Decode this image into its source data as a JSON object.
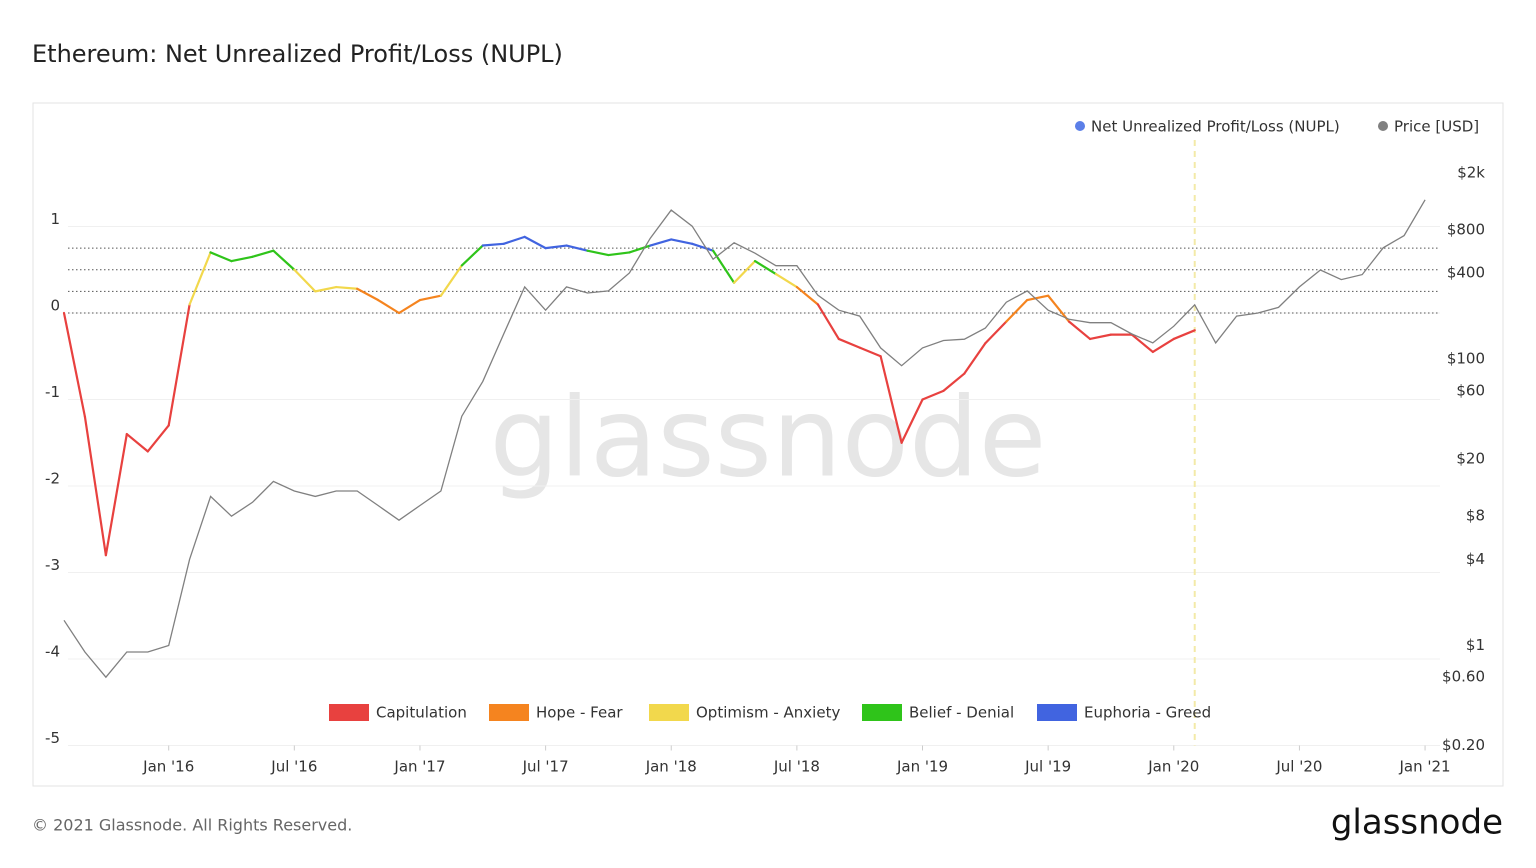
{
  "chart_data": {
    "type": "line",
    "title": "Ethereum: Net Unrealized Profit/Loss (NUPL)",
    "watermark": "glassnode",
    "footer": "© 2021 Glassnode. All Rights Reserved.",
    "logo": "glassnode",
    "x": [
      "2015-08",
      "2015-09",
      "2015-10",
      "2015-11",
      "2015-12",
      "2016-01",
      "2016-02",
      "2016-03",
      "2016-04",
      "2016-05",
      "2016-06",
      "2016-07",
      "2016-08",
      "2016-09",
      "2016-10",
      "2016-11",
      "2016-12",
      "2017-01",
      "2017-02",
      "2017-03",
      "2017-04",
      "2017-05",
      "2017-06",
      "2017-07",
      "2017-08",
      "2017-09",
      "2017-10",
      "2017-11",
      "2017-12",
      "2018-01",
      "2018-02",
      "2018-03",
      "2018-04",
      "2018-05",
      "2018-06",
      "2018-07",
      "2018-08",
      "2018-09",
      "2018-10",
      "2018-11",
      "2018-12",
      "2019-01",
      "2019-02",
      "2019-03",
      "2019-04",
      "2019-05",
      "2019-06",
      "2019-07",
      "2019-08",
      "2019-09",
      "2019-10",
      "2019-11",
      "2019-12",
      "2020-01",
      "2020-02",
      "2020-03",
      "2020-04",
      "2020-05",
      "2020-06",
      "2020-07",
      "2020-08",
      "2020-09",
      "2020-10",
      "2020-11",
      "2020-12",
      "2021-01"
    ],
    "xlim": [
      "2015-08",
      "2021-02"
    ],
    "xticks": [
      {
        "value": "2016-01",
        "label": "Jan '16"
      },
      {
        "value": "2016-07",
        "label": "Jul '16"
      },
      {
        "value": "2017-01",
        "label": "Jan '17"
      },
      {
        "value": "2017-07",
        "label": "Jul '17"
      },
      {
        "value": "2018-01",
        "label": "Jan '18"
      },
      {
        "value": "2018-07",
        "label": "Jul '18"
      },
      {
        "value": "2019-01",
        "label": "Jan '19"
      },
      {
        "value": "2019-07",
        "label": "Jul '19"
      },
      {
        "value": "2020-01",
        "label": "Jan '20"
      },
      {
        "value": "2020-07",
        "label": "Jul '20"
      },
      {
        "value": "2021-01",
        "label": "Jan '21"
      }
    ],
    "ylim": [
      -5,
      2
    ],
    "yticks": [
      -5,
      -4,
      -3,
      -2,
      -1,
      0,
      1
    ],
    "y2lim": [
      0.2,
      3400
    ],
    "y2_log_scale": true,
    "y2ticks": [
      {
        "value": 0.2,
        "label": "$0.20"
      },
      {
        "value": 0.6,
        "label": "$0.60"
      },
      {
        "value": 1,
        "label": "$1"
      },
      {
        "value": 4,
        "label": "$4"
      },
      {
        "value": 8,
        "label": "$8"
      },
      {
        "value": 20,
        "label": "$20"
      },
      {
        "value": 60,
        "label": "$60"
      },
      {
        "value": 100,
        "label": "$100"
      },
      {
        "value": 400,
        "label": "$400"
      },
      {
        "value": 800,
        "label": "$800"
      },
      {
        "value": 2000,
        "label": "$2k"
      }
    ],
    "zone_lines": [
      0,
      0.25,
      0.5,
      0.75
    ],
    "zones": [
      {
        "name": "Capitulation",
        "color": "#e8413f"
      },
      {
        "name": "Hope - Fear",
        "color": "#f5841f"
      },
      {
        "name": "Optimism - Anxiety",
        "color": "#f2d84c"
      },
      {
        "name": "Belief - Denial",
        "color": "#2fc41a"
      },
      {
        "name": "Euphoria - Greed",
        "color": "#4164e0"
      }
    ],
    "marker_x": "2020-02",
    "marker_color": "#f3eaa8",
    "series": [
      {
        "name": "Net Unrealized Profit/Loss (NUPL)",
        "color": "#5b7fe8",
        "axis": "y",
        "values": [
          0,
          -1.2,
          -2.8,
          -1.4,
          -1.6,
          -1.3,
          0.1,
          0.7,
          0.6,
          0.65,
          0.72,
          0.5,
          0.25,
          0.3,
          0.28,
          0.15,
          0.0,
          0.15,
          0.2,
          0.55,
          0.78,
          0.8,
          0.88,
          0.75,
          0.78,
          0.72,
          0.67,
          0.7,
          0.78,
          0.85,
          0.8,
          0.72,
          0.35,
          0.6,
          0.45,
          0.3,
          0.1,
          -0.3,
          -0.4,
          -0.5,
          -1.5,
          -1.0,
          -0.9,
          -0.7,
          -0.35,
          -0.1,
          0.15,
          0.2,
          -0.1,
          -0.3,
          -0.25,
          -0.25,
          -0.45,
          -0.3,
          -0.2,
          null,
          null,
          null,
          null,
          null,
          null,
          null,
          null,
          null,
          null,
          null
        ]
      },
      {
        "name": "Price [USD]",
        "color": "#808080",
        "axis": "y2",
        "values": [
          1.5,
          0.9,
          0.6,
          0.9,
          0.9,
          1.0,
          4,
          11,
          8,
          10,
          14,
          12,
          11,
          12,
          12,
          9.5,
          7.5,
          9.5,
          12,
          40,
          70,
          150,
          320,
          220,
          320,
          290,
          300,
          400,
          700,
          1100,
          850,
          500,
          650,
          550,
          450,
          450,
          280,
          220,
          200,
          120,
          90,
          120,
          135,
          138,
          165,
          250,
          300,
          220,
          190,
          180,
          180,
          150,
          130,
          170,
          240,
          130,
          200,
          210,
          230,
          320,
          420,
          360,
          390,
          600,
          730,
          1300
        ]
      }
    ]
  }
}
